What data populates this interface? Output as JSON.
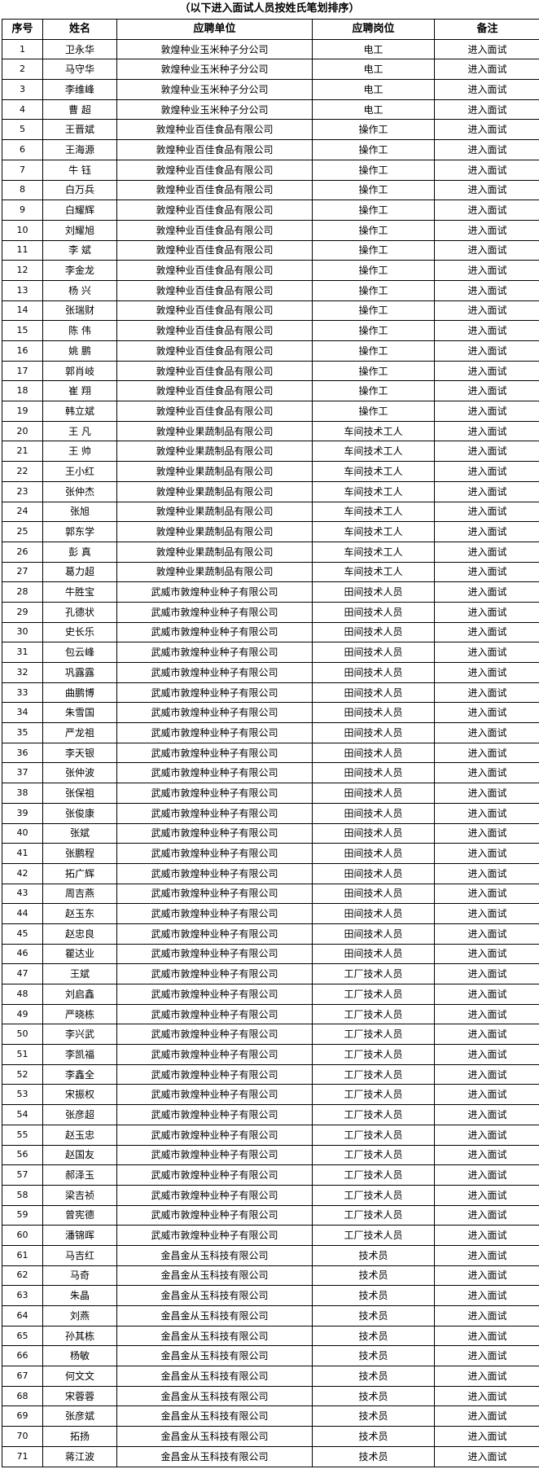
{
  "title": "（以下进入面试人员按姓氏笔划排序）",
  "columns": [
    "序号",
    "姓名",
    "应聘单位",
    "应聘岗位",
    "备注"
  ],
  "rows": [
    [
      "1",
      "卫永华",
      "敦煌种业玉米种子分公司",
      "电工",
      "进入面试"
    ],
    [
      "2",
      "马守华",
      "敦煌种业玉米种子分公司",
      "电工",
      "进入面试"
    ],
    [
      "3",
      "李维峰",
      "敦煌种业玉米种子分公司",
      "电工",
      "进入面试"
    ],
    [
      "4",
      "曹 超",
      "敦煌种业玉米种子分公司",
      "电工",
      "进入面试"
    ],
    [
      "5",
      "王晋斌",
      "敦煌种业百佳食品有限公司",
      "操作工",
      "进入面试"
    ],
    [
      "6",
      "王海源",
      "敦煌种业百佳食品有限公司",
      "操作工",
      "进入面试"
    ],
    [
      "7",
      "牛 钰",
      "敦煌种业百佳食品有限公司",
      "操作工",
      "进入面试"
    ],
    [
      "8",
      "白万兵",
      "敦煌种业百佳食品有限公司",
      "操作工",
      "进入面试"
    ],
    [
      "9",
      "白耀辉",
      "敦煌种业百佳食品有限公司",
      "操作工",
      "进入面试"
    ],
    [
      "10",
      "刘耀旭",
      "敦煌种业百佳食品有限公司",
      "操作工",
      "进入面试"
    ],
    [
      "11",
      "李 斌",
      "敦煌种业百佳食品有限公司",
      "操作工",
      "进入面试"
    ],
    [
      "12",
      "李金龙",
      "敦煌种业百佳食品有限公司",
      "操作工",
      "进入面试"
    ],
    [
      "13",
      "杨 兴",
      "敦煌种业百佳食品有限公司",
      "操作工",
      "进入面试"
    ],
    [
      "14",
      "张瑞财",
      "敦煌种业百佳食品有限公司",
      "操作工",
      "进入面试"
    ],
    [
      "15",
      "陈 伟",
      "敦煌种业百佳食品有限公司",
      "操作工",
      "进入面试"
    ],
    [
      "16",
      "姚 鹏",
      "敦煌种业百佳食品有限公司",
      "操作工",
      "进入面试"
    ],
    [
      "17",
      "郭肖岐",
      "敦煌种业百佳食品有限公司",
      "操作工",
      "进入面试"
    ],
    [
      "18",
      "崔 翔",
      "敦煌种业百佳食品有限公司",
      "操作工",
      "进入面试"
    ],
    [
      "19",
      "韩立斌",
      "敦煌种业百佳食品有限公司",
      "操作工",
      "进入面试"
    ],
    [
      "20",
      "王 凡",
      "敦煌种业果蔬制品有限公司",
      "车间技术工人",
      "进入面试"
    ],
    [
      "21",
      "王 帅",
      "敦煌种业果蔬制品有限公司",
      "车间技术工人",
      "进入面试"
    ],
    [
      "22",
      "王小红",
      "敦煌种业果蔬制品有限公司",
      "车间技术工人",
      "进入面试"
    ],
    [
      "23",
      "张仲杰",
      "敦煌种业果蔬制品有限公司",
      "车间技术工人",
      "进入面试"
    ],
    [
      "24",
      "张旭",
      "敦煌种业果蔬制品有限公司",
      "车间技术工人",
      "进入面试"
    ],
    [
      "25",
      "郭东学",
      "敦煌种业果蔬制品有限公司",
      "车间技术工人",
      "进入面试"
    ],
    [
      "26",
      "彭 真",
      "敦煌种业果蔬制品有限公司",
      "车间技术工人",
      "进入面试"
    ],
    [
      "27",
      "葛力超",
      "敦煌种业果蔬制品有限公司",
      "车间技术工人",
      "进入面试"
    ],
    [
      "28",
      "牛胜宝",
      "武威市敦煌种业种子有限公司",
      "田间技术人员",
      "进入面试"
    ],
    [
      "29",
      "孔德状",
      "武威市敦煌种业种子有限公司",
      "田间技术人员",
      "进入面试"
    ],
    [
      "30",
      "史长乐",
      "武威市敦煌种业种子有限公司",
      "田间技术人员",
      "进入面试"
    ],
    [
      "31",
      "包云峰",
      "武威市敦煌种业种子有限公司",
      "田间技术人员",
      "进入面试"
    ],
    [
      "32",
      "巩露露",
      "武威市敦煌种业种子有限公司",
      "田间技术人员",
      "进入面试"
    ],
    [
      "33",
      "曲鹏博",
      "武威市敦煌种业种子有限公司",
      "田间技术人员",
      "进入面试"
    ],
    [
      "34",
      "朱雪国",
      "武威市敦煌种业种子有限公司",
      "田间技术人员",
      "进入面试"
    ],
    [
      "35",
      "严龙祖",
      "武威市敦煌种业种子有限公司",
      "田间技术人员",
      "进入面试"
    ],
    [
      "36",
      "李天银",
      "武威市敦煌种业种子有限公司",
      "田间技术人员",
      "进入面试"
    ],
    [
      "37",
      "张仲波",
      "武威市敦煌种业种子有限公司",
      "田间技术人员",
      "进入面试"
    ],
    [
      "38",
      "张保祖",
      "武威市敦煌种业种子有限公司",
      "田间技术人员",
      "进入面试"
    ],
    [
      "39",
      "张俊康",
      "武威市敦煌种业种子有限公司",
      "田间技术人员",
      "进入面试"
    ],
    [
      "40",
      "张斌",
      "武威市敦煌种业种子有限公司",
      "田间技术人员",
      "进入面试"
    ],
    [
      "41",
      "张鹏程",
      "武威市敦煌种业种子有限公司",
      "田间技术人员",
      "进入面试"
    ],
    [
      "42",
      "拓广辉",
      "武威市敦煌种业种子有限公司",
      "田间技术人员",
      "进入面试"
    ],
    [
      "43",
      "周吉燕",
      "武威市敦煌种业种子有限公司",
      "田间技术人员",
      "进入面试"
    ],
    [
      "44",
      "赵玉东",
      "武威市敦煌种业种子有限公司",
      "田间技术人员",
      "进入面试"
    ],
    [
      "45",
      "赵忠良",
      "武威市敦煌种业种子有限公司",
      "田间技术人员",
      "进入面试"
    ],
    [
      "46",
      "瞿达业",
      "武威市敦煌种业种子有限公司",
      "田间技术人员",
      "进入面试"
    ],
    [
      "47",
      "王斌",
      "武威市敦煌种业种子有限公司",
      "工厂技术人员",
      "进入面试"
    ],
    [
      "48",
      "刘启鑫",
      "武威市敦煌种业种子有限公司",
      "工厂技术人员",
      "进入面试"
    ],
    [
      "49",
      "严晓栋",
      "武威市敦煌种业种子有限公司",
      "工厂技术人员",
      "进入面试"
    ],
    [
      "50",
      "李兴武",
      "武威市敦煌种业种子有限公司",
      "工厂技术人员",
      "进入面试"
    ],
    [
      "51",
      "李凯福",
      "武威市敦煌种业种子有限公司",
      "工厂技术人员",
      "进入面试"
    ],
    [
      "52",
      "李鑫全",
      "武威市敦煌种业种子有限公司",
      "工厂技术人员",
      "进入面试"
    ],
    [
      "53",
      "宋振权",
      "武威市敦煌种业种子有限公司",
      "工厂技术人员",
      "进入面试"
    ],
    [
      "54",
      "张彦超",
      "武威市敦煌种业种子有限公司",
      "工厂技术人员",
      "进入面试"
    ],
    [
      "55",
      "赵玉忠",
      "武威市敦煌种业种子有限公司",
      "工厂技术人员",
      "进入面试"
    ],
    [
      "56",
      "赵国友",
      "武威市敦煌种业种子有限公司",
      "工厂技术人员",
      "进入面试"
    ],
    [
      "57",
      "郝泽玉",
      "武威市敦煌种业种子有限公司",
      "工厂技术人员",
      "进入面试"
    ],
    [
      "58",
      "梁吉祯",
      "武威市敦煌种业种子有限公司",
      "工厂技术人员",
      "进入面试"
    ],
    [
      "59",
      "曾宪德",
      "武威市敦煌种业种子有限公司",
      "工厂技术人员",
      "进入面试"
    ],
    [
      "60",
      "潘锦晖",
      "武威市敦煌种业种子有限公司",
      "工厂技术人员",
      "进入面试"
    ],
    [
      "61",
      "马吉红",
      "金昌金从玉科技有限公司",
      "技术员",
      "进入面试"
    ],
    [
      "62",
      "马奇",
      "金昌金从玉科技有限公司",
      "技术员",
      "进入面试"
    ],
    [
      "63",
      "朱晶",
      "金昌金从玉科技有限公司",
      "技术员",
      "进入面试"
    ],
    [
      "64",
      "刘燕",
      "金昌金从玉科技有限公司",
      "技术员",
      "进入面试"
    ],
    [
      "65",
      "孙其栋",
      "金昌金从玉科技有限公司",
      "技术员",
      "进入面试"
    ],
    [
      "66",
      "杨敏",
      "金昌金从玉科技有限公司",
      "技术员",
      "进入面试"
    ],
    [
      "67",
      "何文文",
      "金昌金从玉科技有限公司",
      "技术员",
      "进入面试"
    ],
    [
      "68",
      "宋蓉蓉",
      "金昌金从玉科技有限公司",
      "技术员",
      "进入面试"
    ],
    [
      "69",
      "张彦斌",
      "金昌金从玉科技有限公司",
      "技术员",
      "进入面试"
    ],
    [
      "70",
      "拓扬",
      "金昌金从玉科技有限公司",
      "技术员",
      "进入面试"
    ],
    [
      "71",
      "蒋江波",
      "金昌金从玉科技有限公司",
      "技术员",
      "进入面试"
    ]
  ]
}
